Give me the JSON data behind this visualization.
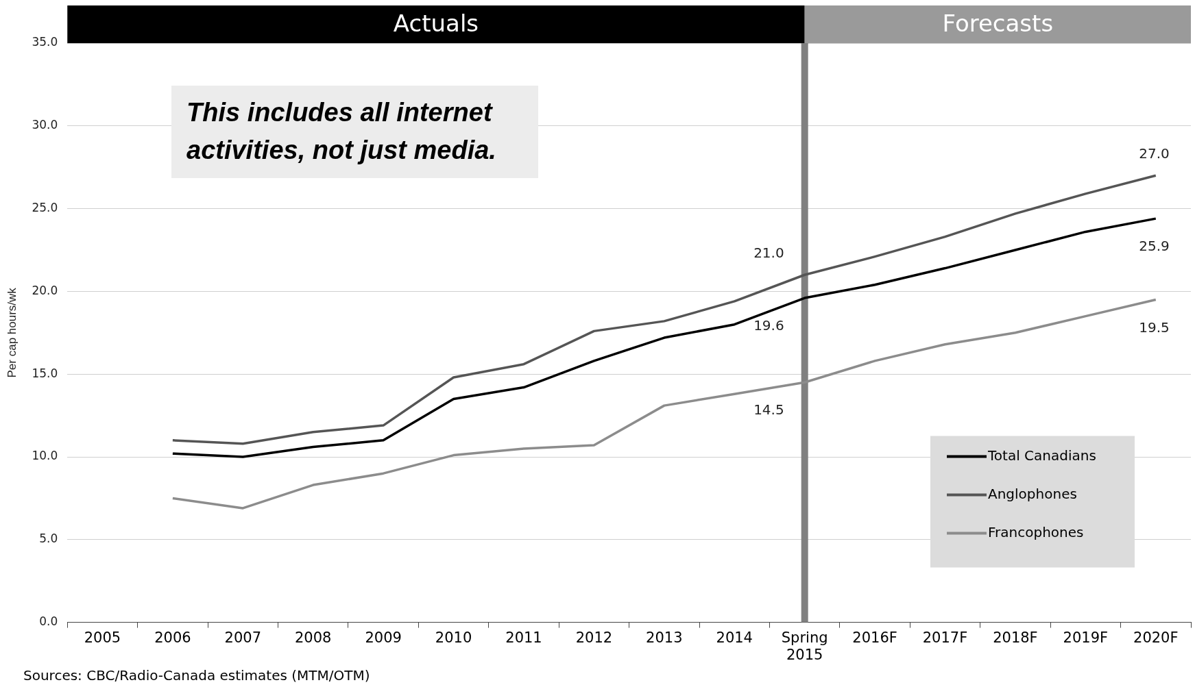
{
  "chart_data": {
    "type": "line",
    "ylabel": "Per cap hours/wk",
    "categories": [
      "2005",
      "2006",
      "2007",
      "2008",
      "2009",
      "2010",
      "2011",
      "2012",
      "2013",
      "2014",
      "Spring 2015",
      "2016F",
      "2017F",
      "2018F",
      "2019F",
      "2020F"
    ],
    "series": [
      {
        "name": "Total Canadians",
        "color": "#000000",
        "values": [
          null,
          10.2,
          10.0,
          10.6,
          11.0,
          13.5,
          14.2,
          15.8,
          17.2,
          18.0,
          19.6,
          20.4,
          21.4,
          22.5,
          23.6,
          24.4
        ]
      },
      {
        "name": "Anglophones",
        "color": "#555555",
        "values": [
          null,
          11.0,
          10.8,
          11.5,
          11.9,
          14.8,
          15.6,
          17.6,
          18.2,
          19.4,
          21.0,
          22.1,
          23.3,
          24.7,
          25.9,
          27.0
        ]
      },
      {
        "name": "Francophones",
        "color": "#8c8c8c",
        "values": [
          null,
          7.5,
          6.9,
          8.3,
          9.0,
          10.1,
          10.5,
          10.7,
          13.1,
          13.8,
          14.5,
          15.8,
          16.8,
          17.5,
          18.5,
          19.5
        ]
      }
    ],
    "ylim": [
      0,
      35
    ],
    "yticks": [
      {
        "value": 0,
        "label": "0.0"
      },
      {
        "value": 5,
        "label": "5.0"
      },
      {
        "value": 10,
        "label": "10.0"
      },
      {
        "value": 15,
        "label": "15.0"
      },
      {
        "value": 20,
        "label": "20.0"
      },
      {
        "value": 25,
        "label": "25.0"
      },
      {
        "value": 30,
        "label": "30.0"
      },
      {
        "value": 35,
        "label": "35.0"
      }
    ],
    "grid": "y",
    "legend": "bottom right",
    "marker": "none",
    "line_style": "solid",
    "ref_lines": [
      {
        "axis": "x",
        "value": "Spring 2015",
        "color": "#808080"
      }
    ],
    "annotations": [
      "Actuals",
      "Forecasts",
      "This includes all internet activities, not just media.",
      {
        "text": "21.0",
        "x": "Spring 2015",
        "y": 21.0
      },
      {
        "text": "19.6",
        "x": "Spring 2015",
        "y": 19.6
      },
      {
        "text": "14.5",
        "x": "Spring 2015",
        "y": 14.5
      },
      {
        "text": "27.0",
        "x": "2020F",
        "y": 27.0
      },
      {
        "text": "25.9",
        "x": "2020F",
        "y": 24.4
      },
      {
        "text": "19.5",
        "x": "2020F",
        "y": 19.5
      },
      "Sources: CBC/Radio-Canada estimates (MTM/OTM)"
    ]
  }
}
